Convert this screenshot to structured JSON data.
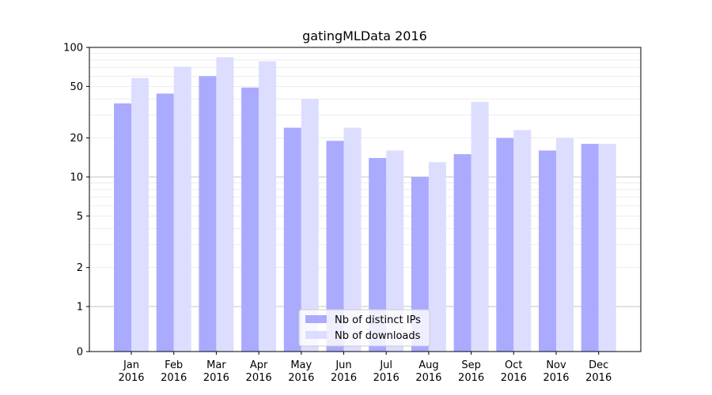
{
  "chart_data": {
    "type": "bar",
    "title": "gatingMLData 2016",
    "xlabel": "",
    "ylabel": "",
    "y_scale": "symlog",
    "ylim": [
      0,
      100
    ],
    "y_ticks": [
      0,
      1,
      2,
      5,
      10,
      20,
      50,
      100
    ],
    "y_tick_labels": [
      "0",
      "1",
      "2",
      "5",
      "10",
      "20",
      "50",
      "100"
    ],
    "categories": [
      [
        "Jan",
        "2016"
      ],
      [
        "Feb",
        "2016"
      ],
      [
        "Mar",
        "2016"
      ],
      [
        "Apr",
        "2016"
      ],
      [
        "May",
        "2016"
      ],
      [
        "Jun",
        "2016"
      ],
      [
        "Jul",
        "2016"
      ],
      [
        "Aug",
        "2016"
      ],
      [
        "Sep",
        "2016"
      ],
      [
        "Oct",
        "2016"
      ],
      [
        "Nov",
        "2016"
      ],
      [
        "Dec",
        "2016"
      ]
    ],
    "series": [
      {
        "name": "Nb of distinct IPs",
        "color": "#aaaaff",
        "values": [
          37,
          44,
          60,
          49,
          24,
          19,
          14,
          10,
          15,
          20,
          16,
          18
        ]
      },
      {
        "name": "Nb of downloads",
        "color": "#ddddff",
        "values": [
          58,
          71,
          84,
          78,
          40,
          24,
          16,
          13,
          38,
          23,
          20,
          18
        ]
      }
    ],
    "grid": "horizontal",
    "legend": "bottom-center"
  }
}
